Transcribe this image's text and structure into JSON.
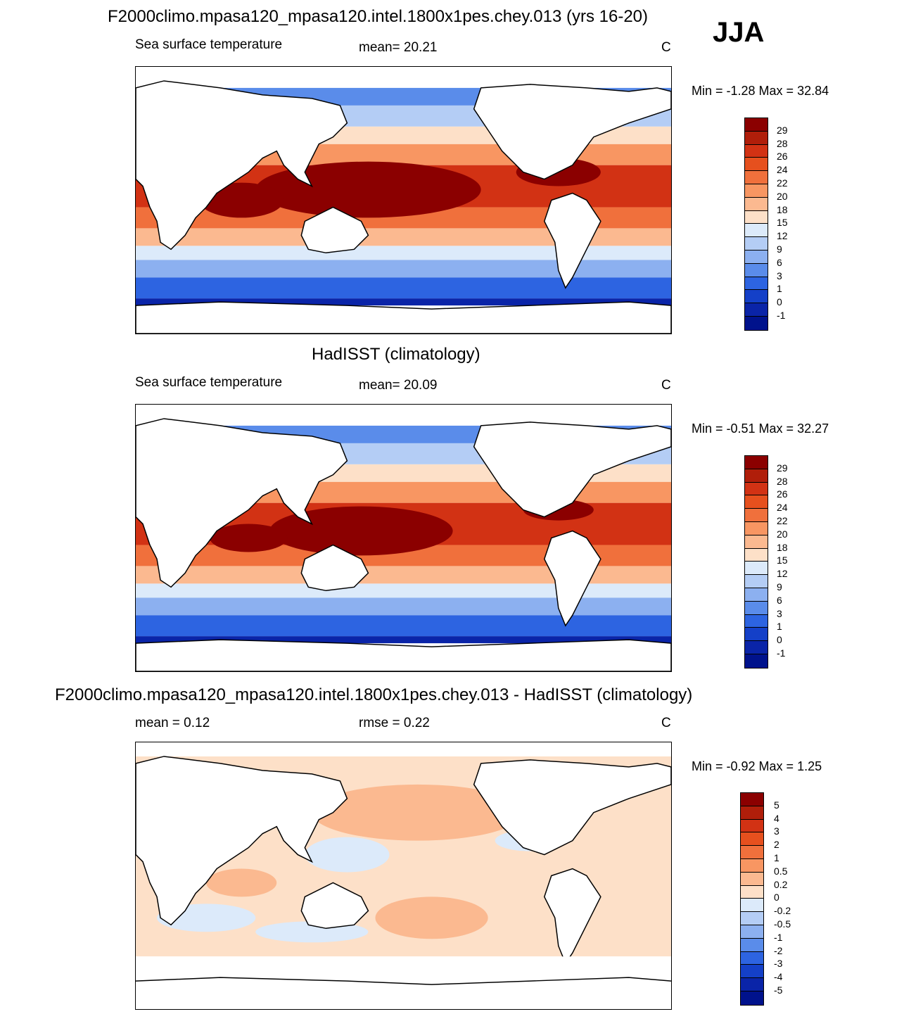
{
  "figure": {
    "title": "F2000climo.mpasa120_mpasa120.intel.1800x1pes.chey.013 (yrs 16-20)",
    "season": "JJA"
  },
  "panels": [
    {
      "id": "model",
      "title": "",
      "field_label": "Sea surface temperature",
      "stat_text": "mean=  20.21",
      "unit": "C",
      "minmax_text": "Min =  -1.28 Max =  32.84",
      "map_type": "absolute"
    },
    {
      "id": "obs",
      "title": "HadISST (climatology)",
      "field_label": "Sea surface temperature",
      "stat_text": "mean=  20.09",
      "unit": "C",
      "minmax_text": "Min =  -0.51 Max =  32.27",
      "map_type": "absolute"
    },
    {
      "id": "diff",
      "title": "F2000climo.mpasa120_mpasa120.intel.1800x1pes.chey.013 - HadISST (climatology)",
      "field_label": "mean =   0.12",
      "stat_text": "rmse =   0.22",
      "unit": "C",
      "minmax_text": "Min =  -0.92 Max =   1.25",
      "map_type": "difference"
    }
  ],
  "colorbars": {
    "absolute": {
      "labels": [
        "29",
        "28",
        "26",
        "24",
        "22",
        "20",
        "18",
        "15",
        "12",
        "9",
        "6",
        "3",
        "1",
        "0",
        "-1"
      ],
      "colors": [
        "#8b0000",
        "#b01e0a",
        "#d23214",
        "#e6501e",
        "#f0703c",
        "#f89662",
        "#fbb990",
        "#fde0c8",
        "#dceafa",
        "#b4cdf5",
        "#8cb0f0",
        "#5a8cea",
        "#2d64e1",
        "#1440c8",
        "#0a24a8",
        "#00128c"
      ]
    },
    "difference": {
      "labels": [
        "5",
        "4",
        "3",
        "2",
        "1",
        "0.5",
        "0.2",
        "0",
        "-0.2",
        "-0.5",
        "-1",
        "-2",
        "-3",
        "-4",
        "-5"
      ],
      "colors": [
        "#8b0000",
        "#b01e0a",
        "#d23214",
        "#e6501e",
        "#f0703c",
        "#f89662",
        "#fbb990",
        "#fde0c8",
        "#dceafa",
        "#b4cdf5",
        "#8cb0f0",
        "#5a8cea",
        "#2d64e1",
        "#1440c8",
        "#0a24a8",
        "#00128c"
      ]
    }
  }
}
